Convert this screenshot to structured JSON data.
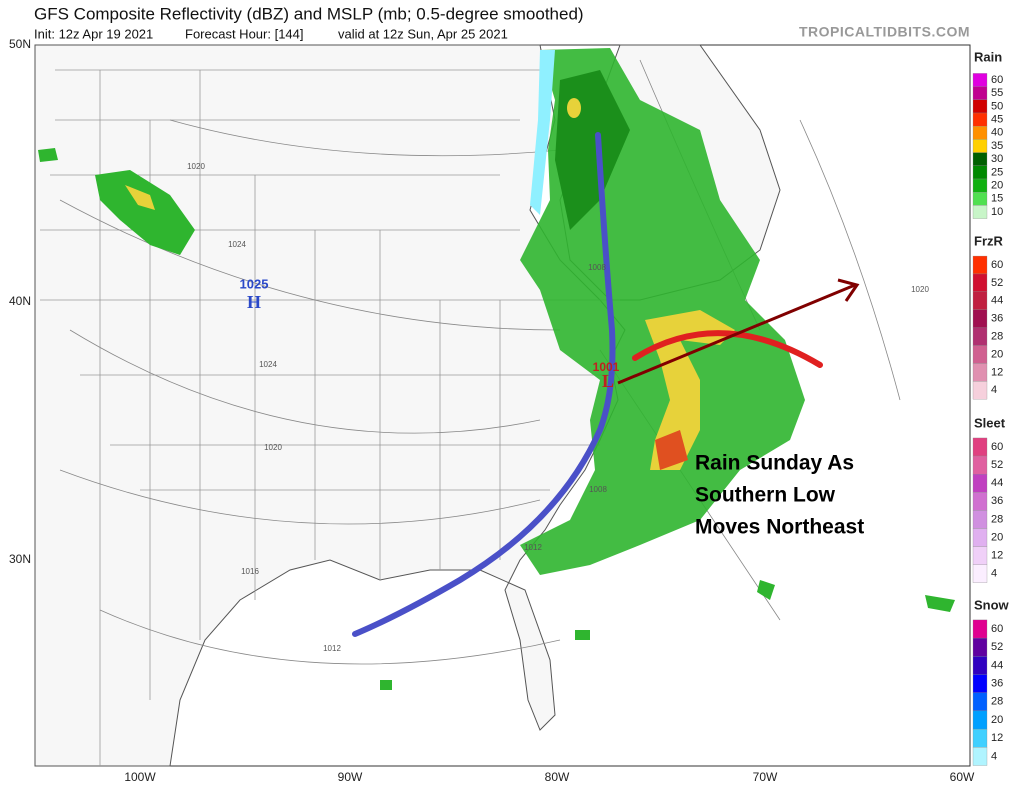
{
  "header": {
    "title": "GFS Composite Reflectivity (dBZ) and MSLP (mb; 0.5-degree smoothed)",
    "subtitle": [
      "Init: 12z Apr 19 2021",
      "Forecast Hour: [144]",
      "valid at 12z Sun, Apr 25 2021"
    ],
    "watermark": "TROPICALTIDBITS.COM"
  },
  "map": {
    "lat_labels": [
      "50N",
      "40N",
      "30N"
    ],
    "lon_labels": [
      "100W",
      "90W",
      "80W",
      "70W",
      "60W"
    ],
    "pressure_centers": [
      {
        "value": "1025",
        "label": "H"
      },
      {
        "value": "1001",
        "label": "L"
      }
    ],
    "isobar_labels": [
      "1020",
      "1024",
      "1024",
      "1020",
      "1016",
      "1012",
      "1012",
      "1008",
      "1008",
      "1020"
    ],
    "annotation": [
      "Rain Sunday As",
      "Southern Low",
      "Moves Northeast"
    ]
  },
  "legend": [
    {
      "title": "Rain",
      "ticks": [
        60,
        55,
        50,
        45,
        40,
        35,
        30,
        25,
        20,
        15,
        10
      ],
      "colors": [
        "#e000e0",
        "#c00090",
        "#d00000",
        "#ff3000",
        "#ff9000",
        "#ffd000",
        "#006000",
        "#008800",
        "#10b010",
        "#50e050",
        "#c8f5c8"
      ]
    },
    {
      "title": "FrzR",
      "ticks": [
        60,
        52,
        44,
        36,
        28,
        20,
        12,
        4
      ],
      "colors": [
        "#ff3000",
        "#d01030",
        "#c02040",
        "#a01050",
        "#b03070",
        "#d06090",
        "#e090b0",
        "#f6d0dc"
      ]
    },
    {
      "title": "Sleet",
      "ticks": [
        60,
        52,
        44,
        36,
        28,
        20,
        12,
        4
      ],
      "colors": [
        "#e04080",
        "#e060a0",
        "#c040c0",
        "#d070d0",
        "#d090e0",
        "#e0b0f0",
        "#f0d0f8",
        "#fbeeff"
      ]
    },
    {
      "title": "Snow",
      "ticks": [
        60,
        52,
        44,
        36,
        28,
        20,
        12,
        4
      ],
      "colors": [
        "#e00090",
        "#6000a0",
        "#3000c0",
        "#0000ff",
        "#0060ff",
        "#00a0ff",
        "#40d0ff",
        "#b0f4ff"
      ]
    }
  ]
}
